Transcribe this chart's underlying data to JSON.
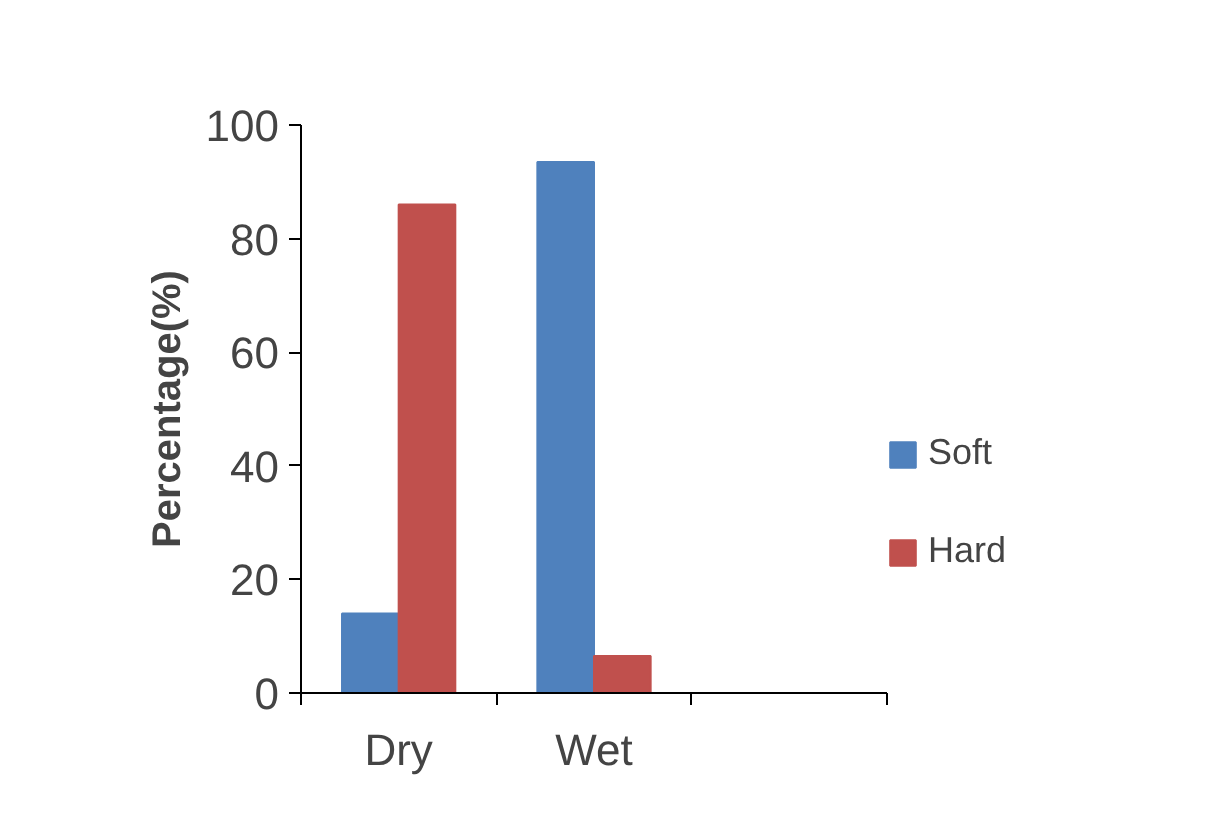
{
  "chart_data": {
    "type": "bar",
    "ylabel": "Percentage(%)",
    "categories": [
      "Dry",
      "Wet",
      null
    ],
    "series": [
      {
        "name": "Soft",
        "color": "#4f81bd",
        "values": [
          14,
          93.5,
          null
        ]
      },
      {
        "name": "Hard",
        "color": "#c0504d",
        "values": [
          86,
          6.5,
          null
        ]
      }
    ],
    "ylim": [
      0,
      100
    ],
    "yticks": [
      0,
      20,
      40,
      60,
      80,
      100
    ],
    "grid": false,
    "legend": "right"
  }
}
